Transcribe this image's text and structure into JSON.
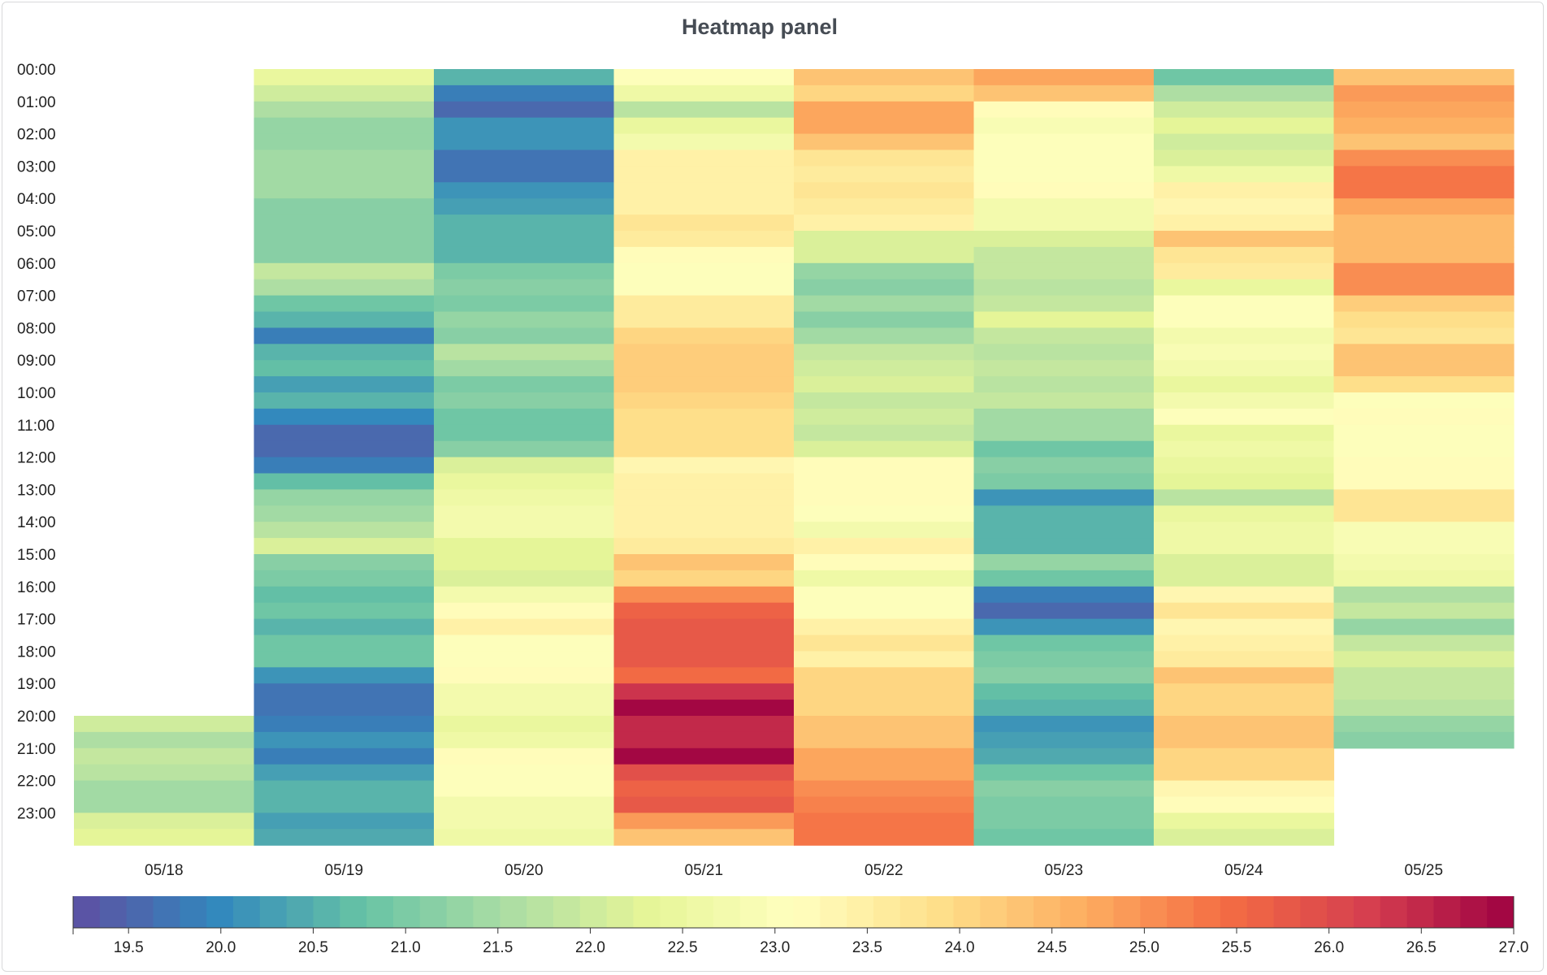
{
  "panel": {
    "title": "Heatmap panel"
  },
  "chart_data": {
    "type": "heatmap",
    "title": "Heatmap panel",
    "x_categories": [
      "05/18",
      "05/19",
      "05/20",
      "05/21",
      "05/22",
      "05/23",
      "05/24",
      "05/25"
    ],
    "y_tick_labels": [
      "00:00",
      "01:00",
      "02:00",
      "03:00",
      "04:00",
      "05:00",
      "06:00",
      "07:00",
      "08:00",
      "09:00",
      "10:00",
      "11:00",
      "12:00",
      "13:00",
      "14:00",
      "15:00",
      "16:00",
      "17:00",
      "18:00",
      "19:00",
      "20:00",
      "21:00",
      "22:00",
      "23:00"
    ],
    "bucket_minutes": 30,
    "columns": [
      {
        "x": "05/18",
        "values": [
          null,
          null,
          null,
          null,
          null,
          null,
          null,
          null,
          null,
          null,
          null,
          null,
          null,
          null,
          null,
          null,
          null,
          null,
          null,
          null,
          null,
          null,
          null,
          null,
          null,
          null,
          null,
          null,
          null,
          null,
          null,
          null,
          null,
          null,
          null,
          null,
          null,
          null,
          null,
          null,
          22.0,
          21.6,
          21.8,
          21.7,
          21.5,
          21.5,
          22.1,
          22.3
        ]
      },
      {
        "x": "05/19",
        "values": [
          22.4,
          22.0,
          21.6,
          21.3,
          21.3,
          21.4,
          21.5,
          21.5,
          21.1,
          21.1,
          21.2,
          21.1,
          21.9,
          21.6,
          20.8,
          20.6,
          19.9,
          20.6,
          20.7,
          20.3,
          20.5,
          20.0,
          19.5,
          19.5,
          19.8,
          20.7,
          21.3,
          21.5,
          21.7,
          22.1,
          21.1,
          21.0,
          20.7,
          20.8,
          20.5,
          20.9,
          20.9,
          20.1,
          19.7,
          19.7,
          19.9,
          20.1,
          19.9,
          20.3,
          20.6,
          20.6,
          20.3,
          20.4
        ]
      },
      {
        "x": "05/20",
        "values": [
          20.5,
          19.8,
          19.6,
          20.1,
          20.1,
          19.7,
          19.7,
          20.2,
          20.3,
          20.5,
          20.5,
          20.5,
          21.0,
          21.2,
          21.0,
          21.3,
          21.1,
          21.7,
          21.4,
          21.0,
          21.2,
          20.9,
          20.9,
          21.2,
          22.1,
          22.4,
          22.6,
          22.8,
          22.8,
          22.3,
          22.3,
          22.2,
          22.7,
          23.1,
          23.4,
          23.0,
          23.0,
          23.1,
          22.8,
          22.7,
          22.5,
          22.6,
          23.1,
          23.0,
          23.0,
          22.7,
          22.7,
          22.6
        ]
      },
      {
        "x": "05/21",
        "values": [
          23.0,
          22.6,
          21.7,
          22.4,
          22.8,
          23.5,
          23.5,
          23.5,
          23.4,
          23.8,
          23.6,
          23.1,
          23.0,
          23.0,
          23.6,
          23.6,
          24.0,
          24.2,
          24.2,
          24.2,
          24.0,
          23.9,
          23.9,
          23.9,
          23.3,
          23.4,
          23.4,
          23.5,
          23.5,
          23.6,
          24.3,
          24.0,
          25.1,
          25.6,
          25.8,
          25.8,
          25.8,
          25.5,
          26.4,
          26.9,
          26.5,
          26.5,
          27.0,
          25.9,
          25.7,
          25.8,
          24.9,
          24.4
        ]
      },
      {
        "x": "05/22",
        "values": [
          24.4,
          24.0,
          24.8,
          24.8,
          24.4,
          23.8,
          23.6,
          23.8,
          23.6,
          23.4,
          22.1,
          22.1,
          21.3,
          21.2,
          21.4,
          21.1,
          21.5,
          21.9,
          22.0,
          22.1,
          21.9,
          22.0,
          21.8,
          22.1,
          23.1,
          23.1,
          23.1,
          23.0,
          22.7,
          23.4,
          23.1,
          22.6,
          23.0,
          23.0,
          23.5,
          23.7,
          23.5,
          24.1,
          24.1,
          24.1,
          24.3,
          24.4,
          24.8,
          24.8,
          25.1,
          25.2,
          25.3,
          25.4
        ]
      },
      {
        "x": "05/23",
        "values": [
          24.8,
          24.3,
          23.2,
          22.9,
          23.0,
          23.0,
          23.0,
          23.2,
          22.8,
          22.8,
          22.2,
          21.8,
          21.8,
          21.7,
          21.8,
          22.3,
          21.9,
          21.7,
          21.8,
          21.7,
          21.8,
          21.4,
          21.4,
          20.8,
          21.2,
          21.0,
          20.2,
          20.5,
          20.5,
          20.5,
          21.3,
          20.9,
          19.8,
          19.5,
          20.1,
          20.8,
          21.0,
          21.2,
          20.7,
          20.5,
          20.1,
          20.3,
          20.4,
          20.8,
          21.1,
          21.0,
          21.0,
          20.9
        ]
      },
      {
        "x": "05/24",
        "values": [
          20.9,
          21.6,
          22.0,
          22.3,
          22.0,
          22.2,
          22.6,
          23.4,
          23.3,
          23.5,
          24.3,
          23.8,
          23.6,
          22.5,
          23.0,
          23.0,
          22.8,
          22.9,
          22.7,
          22.4,
          22.7,
          23.0,
          22.5,
          22.6,
          22.4,
          22.3,
          21.7,
          22.4,
          22.6,
          22.6,
          22.2,
          22.2,
          23.3,
          23.8,
          23.3,
          23.4,
          23.6,
          24.3,
          24.1,
          24.1,
          24.3,
          24.4,
          24.0,
          24.1,
          23.3,
          23.1,
          22.5,
          22.2
        ]
      },
      {
        "x": "05/25",
        "values": [
          24.4,
          24.9,
          24.7,
          24.6,
          24.3,
          25.0,
          25.4,
          25.4,
          24.8,
          24.5,
          24.5,
          24.5,
          25.1,
          25.1,
          24.2,
          23.9,
          23.8,
          24.4,
          24.4,
          23.9,
          23.0,
          23.1,
          23.0,
          23.0,
          23.1,
          23.1,
          23.7,
          23.7,
          22.9,
          22.9,
          22.8,
          22.6,
          21.6,
          21.8,
          21.3,
          21.8,
          22.1,
          21.9,
          21.9,
          21.7,
          21.3,
          21.1,
          null,
          null,
          null,
          null,
          null,
          null
        ]
      }
    ],
    "color_scale": {
      "scheme": "Spectral (reversed)",
      "min": 19.2,
      "max": 27.0,
      "ticks": [
        19.5,
        20.0,
        20.5,
        21.0,
        21.5,
        22.0,
        22.5,
        23.0,
        23.5,
        24.0,
        24.5,
        25.0,
        25.5,
        26.0,
        26.5,
        27.0
      ],
      "tick_labels": [
        "19.5",
        "20.0",
        "20.5",
        "21.0",
        "21.5",
        "22.0",
        "22.5",
        "23.0",
        "23.5",
        "24.0",
        "24.5",
        "25.0",
        "25.5",
        "26.0",
        "26.5",
        "27.0"
      ],
      "steps": 54,
      "stops": [
        "#5e4fa2",
        "#3288bd",
        "#66c2a5",
        "#abdda4",
        "#e6f598",
        "#ffffbf",
        "#fee08b",
        "#fdae61",
        "#f46d43",
        "#d53e4f",
        "#9e0142"
      ]
    },
    "grid": false,
    "legend": "bottom"
  }
}
